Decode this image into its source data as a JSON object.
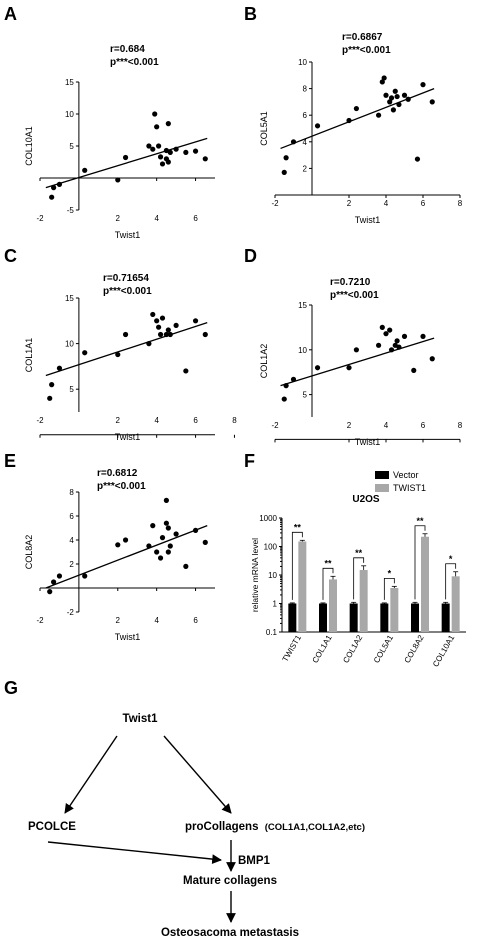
{
  "chart_data": [
    {
      "panel": "A",
      "type": "scatter",
      "annotation_r": "r=0.684",
      "annotation_p": "p***<0.001",
      "xlabel": "Twist1",
      "ylabel": "COL10A1",
      "xticks": [
        "-2",
        "2",
        "4",
        "6"
      ],
      "yticks": [
        "-5",
        "5",
        "10",
        "15"
      ],
      "xlim": [
        -2,
        7
      ],
      "ylim": [
        -5,
        15
      ],
      "points": [
        [
          -1.3,
          -1.5
        ],
        [
          -1.4,
          -3.0
        ],
        [
          -1.0,
          -1.0
        ],
        [
          0.3,
          1.2
        ],
        [
          2.0,
          -0.3
        ],
        [
          2.4,
          3.2
        ],
        [
          3.6,
          5.0
        ],
        [
          3.8,
          4.5
        ],
        [
          3.9,
          10.0
        ],
        [
          4.0,
          8.0
        ],
        [
          4.1,
          5.0
        ],
        [
          4.2,
          3.3
        ],
        [
          4.3,
          2.2
        ],
        [
          4.5,
          4.3
        ],
        [
          4.5,
          3.0
        ],
        [
          4.6,
          2.5
        ],
        [
          4.6,
          8.5
        ],
        [
          4.7,
          4.0
        ],
        [
          5.0,
          4.5
        ],
        [
          5.5,
          4.0
        ],
        [
          6.0,
          4.2
        ],
        [
          6.5,
          3.0
        ]
      ],
      "fit": [
        [
          -1.7,
          -1.5
        ],
        [
          6.6,
          6.2
        ]
      ]
    },
    {
      "panel": "B",
      "type": "scatter",
      "annotation_r": "r=0.6867",
      "annotation_p": "p***<0.001",
      "xlabel": "Twist1",
      "ylabel": "COL5A1",
      "xticks": [
        "-2",
        "2",
        "4",
        "6",
        "8"
      ],
      "yticks": [
        "2",
        "4",
        "6",
        "8",
        "10"
      ],
      "xlim": [
        -2,
        8
      ],
      "ylim": [
        0,
        10
      ],
      "points": [
        [
          -1.5,
          1.7
        ],
        [
          -1.4,
          2.8
        ],
        [
          -1.0,
          4.0
        ],
        [
          0.3,
          5.2
        ],
        [
          2.0,
          5.6
        ],
        [
          2.4,
          6.5
        ],
        [
          3.6,
          6.0
        ],
        [
          3.8,
          8.5
        ],
        [
          3.9,
          8.8
        ],
        [
          4.0,
          7.5
        ],
        [
          4.2,
          7.0
        ],
        [
          4.3,
          7.3
        ],
        [
          4.4,
          6.4
        ],
        [
          4.5,
          7.8
        ],
        [
          4.6,
          7.4
        ],
        [
          4.7,
          6.8
        ],
        [
          5.0,
          7.5
        ],
        [
          5.2,
          7.2
        ],
        [
          5.7,
          2.7
        ],
        [
          6.0,
          8.3
        ],
        [
          6.5,
          7.0
        ]
      ],
      "fit": [
        [
          -1.7,
          3.5
        ],
        [
          6.6,
          8.0
        ]
      ]
    },
    {
      "panel": "C",
      "type": "scatter",
      "annotation_r": "r=0.71654",
      "annotation_p": "p***<0.001",
      "xlabel": "Twist1",
      "ylabel": "COL1A1",
      "xticks": [
        "-2",
        "2",
        "4",
        "6",
        "8"
      ],
      "yticks": [
        "5",
        "10",
        "15"
      ],
      "xlim": [
        -2,
        7
      ],
      "ylim": [
        2.5,
        15
      ],
      "points": [
        [
          -1.5,
          4.0
        ],
        [
          -1.4,
          5.5
        ],
        [
          -1.0,
          7.3
        ],
        [
          0.3,
          9.0
        ],
        [
          2.0,
          8.8
        ],
        [
          2.4,
          11.0
        ],
        [
          3.6,
          10.0
        ],
        [
          3.8,
          13.2
        ],
        [
          4.0,
          12.5
        ],
        [
          4.1,
          11.8
        ],
        [
          4.2,
          11.0
        ],
        [
          4.3,
          12.8
        ],
        [
          4.5,
          11.0
        ],
        [
          4.6,
          11.5
        ],
        [
          4.7,
          11.0
        ],
        [
          5.0,
          12.0
        ],
        [
          5.5,
          7.0
        ],
        [
          6.0,
          12.5
        ],
        [
          6.5,
          11.0
        ]
      ],
      "fit": [
        [
          -1.7,
          6.5
        ],
        [
          6.6,
          12.3
        ]
      ]
    },
    {
      "panel": "D",
      "type": "scatter",
      "annotation_r": "r=0.7210",
      "annotation_p": "p***<0.001",
      "xlabel": "Twist1",
      "ylabel": "COL1A2",
      "xticks": [
        "-2",
        "2",
        "4",
        "6",
        "8"
      ],
      "yticks": [
        "5",
        "10",
        "15"
      ],
      "xlim": [
        -2,
        8
      ],
      "ylim": [
        2.5,
        15
      ],
      "points": [
        [
          -1.5,
          4.5
        ],
        [
          -1.4,
          6.0
        ],
        [
          -1.0,
          6.7
        ],
        [
          0.3,
          8.0
        ],
        [
          2.0,
          8.0
        ],
        [
          2.4,
          10.0
        ],
        [
          3.6,
          10.5
        ],
        [
          3.8,
          12.5
        ],
        [
          4.0,
          11.8
        ],
        [
          4.2,
          12.2
        ],
        [
          4.3,
          10.0
        ],
        [
          4.5,
          10.5
        ],
        [
          4.6,
          11.0
        ],
        [
          4.7,
          10.3
        ],
        [
          5.0,
          11.5
        ],
        [
          5.5,
          7.7
        ],
        [
          6.0,
          11.5
        ],
        [
          6.5,
          9.0
        ]
      ],
      "fit": [
        [
          -1.7,
          6.0
        ],
        [
          6.6,
          11.3
        ]
      ]
    },
    {
      "panel": "E",
      "type": "scatter",
      "annotation_r": "r=0.6812",
      "annotation_p": "p***<0.001",
      "xlabel": "Twist1",
      "ylabel": "COL8A2",
      "xticks": [
        "-2",
        "2",
        "4",
        "6"
      ],
      "yticks": [
        "-2",
        "2",
        "4",
        "6",
        "8"
      ],
      "xlim": [
        -2,
        7
      ],
      "ylim": [
        -2,
        8
      ],
      "points": [
        [
          -1.5,
          -0.3
        ],
        [
          -1.3,
          0.5
        ],
        [
          -1.0,
          1.0
        ],
        [
          0.3,
          1.0
        ],
        [
          2.0,
          3.6
        ],
        [
          2.4,
          4.0
        ],
        [
          3.6,
          3.5
        ],
        [
          3.8,
          5.2
        ],
        [
          4.0,
          3.0
        ],
        [
          4.2,
          2.5
        ],
        [
          4.3,
          4.2
        ],
        [
          4.5,
          7.3
        ],
        [
          4.5,
          5.4
        ],
        [
          4.6,
          5.0
        ],
        [
          4.6,
          3.0
        ],
        [
          4.7,
          3.5
        ],
        [
          5.0,
          4.5
        ],
        [
          5.5,
          1.8
        ],
        [
          6.0,
          4.8
        ],
        [
          6.5,
          3.8
        ]
      ],
      "fit": [
        [
          -1.7,
          0.0
        ],
        [
          6.6,
          5.2
        ]
      ]
    },
    {
      "panel": "F",
      "type": "bar",
      "title": "U2OS",
      "ylabel": "relative mRNA level",
      "yscale": "log",
      "ylim": [
        0.1,
        1000
      ],
      "yticks": [
        "0.1",
        "1",
        "10",
        "100",
        "1000"
      ],
      "categories": [
        "TWIST1",
        "COL1A1",
        "COL1A2",
        "COL5A1",
        "COL8A2",
        "COL10A1"
      ],
      "series": [
        {
          "name": "Vector",
          "color": "#000000",
          "values": [
            1,
            1,
            1,
            1,
            1,
            1
          ],
          "errors": [
            0.05,
            0.05,
            0.1,
            0.05,
            0.1,
            0.1
          ]
        },
        {
          "name": "TWIST1",
          "color": "#a8a8a8",
          "values": [
            150,
            7,
            15,
            3.5,
            220,
            9
          ],
          "errors": [
            15,
            2,
            6,
            0.5,
            60,
            4
          ]
        }
      ],
      "significance": [
        "**",
        "**",
        "**",
        "*",
        "**",
        "*"
      ],
      "legend_position": "top-right"
    }
  ],
  "panel_g": {
    "letter": "G",
    "twist1": "Twist1",
    "pcolce": "PCOLCE",
    "procollagens": "proCollagens",
    "procollagens_detail": "(COL1A1,COL1A2,etc)",
    "bmp1": "BMP1",
    "mature": "Mature collagens",
    "metastasis": "Osteosacoma metastasis"
  }
}
